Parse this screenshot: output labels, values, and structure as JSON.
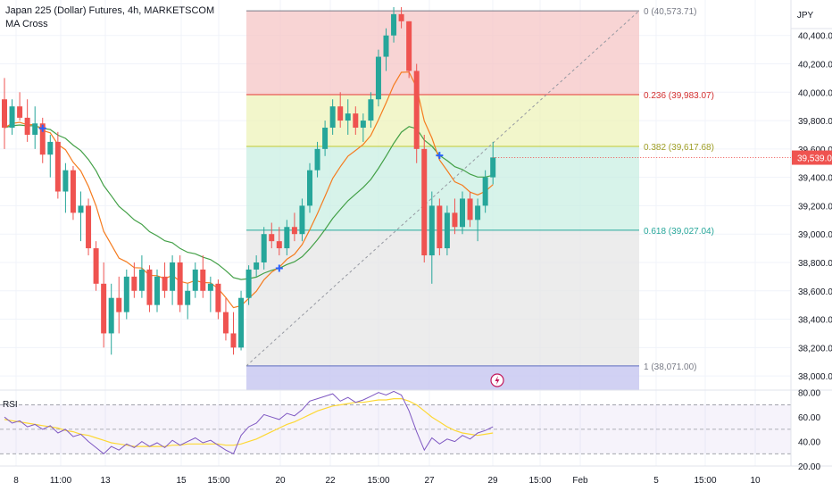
{
  "header": {
    "symbol_title": "Japan 225 (Dollar) Futures, 4h, MARKETSCOM",
    "indicator": "MA Cross",
    "currency": "JPY",
    "rsi_label": "RSI"
  },
  "colors": {
    "up": "#26a69a",
    "down": "#ef5350",
    "ma_fast": "#f57c1f",
    "ma_slow": "#43a047",
    "rsi_line": "#7e57c2",
    "rsi_ma": "#fdd835",
    "fib_0": "#f5c6c6",
    "fib_236": "#eef3b9",
    "fib_382": "#c9efe3",
    "fib_618": "#e6e6e6",
    "fib_1": "#c9c9f1",
    "cross_marker": "#2962ff",
    "price_tag": "#ef5350",
    "event_icon": "#c2185b"
  },
  "icons": {
    "event": "lightning-icon"
  },
  "price_axis": {
    "labels": [
      "40,400.00",
      "40,200.00",
      "40,000.00",
      "39,800.00",
      "39,600.00",
      "39,400.00",
      "39,200.00",
      "39,000.00",
      "38,800.00",
      "38,600.00",
      "38,400.00",
      "38,200.00",
      "38,000.00"
    ],
    "current_price": "39,539.01"
  },
  "rsi_axis": {
    "labels": [
      "80.00",
      "60.00",
      "40.00",
      "20.00"
    ]
  },
  "time_axis": {
    "labels": [
      "8",
      "11:00",
      "13",
      "15",
      "15:00",
      "20",
      "22",
      "15:00",
      "27",
      "29",
      "15:00",
      "Feb",
      "5",
      "15:00",
      "10"
    ]
  },
  "fib": {
    "levels": [
      {
        "ratio": 0,
        "price": 40573.71,
        "label": "0 (40,573.71)"
      },
      {
        "ratio": 0.236,
        "price": 39983.07,
        "label": "0.236 (39,983.07)"
      },
      {
        "ratio": 0.382,
        "price": 39617.68,
        "label": "0.382 (39,617.68)"
      },
      {
        "ratio": 0.618,
        "price": 39027.04,
        "label": "0.618 (39,027.04)"
      },
      {
        "ratio": 1,
        "price": 38071.0,
        "label": "1 (38,071.00)"
      }
    ]
  },
  "chart_data": {
    "type": "candlestick",
    "title": "Japan 225 (Dollar) Futures, 4h, MARKETSCOM",
    "y_unit": "JPY",
    "ylim": [
      37900,
      40650
    ],
    "candles": [
      [
        39950,
        40100,
        39600,
        39750
      ],
      [
        39750,
        39950,
        39700,
        39900
      ],
      [
        39900,
        40000,
        39800,
        39820
      ],
      [
        39820,
        39950,
        39650,
        39700
      ],
      [
        39700,
        39900,
        39600,
        39780
      ],
      [
        39780,
        39820,
        39500,
        39560
      ],
      [
        39560,
        39700,
        39400,
        39650
      ],
      [
        39650,
        39720,
        39250,
        39300
      ],
      [
        39300,
        39500,
        39150,
        39450
      ],
      [
        39450,
        39480,
        39100,
        39150
      ],
      [
        39150,
        39300,
        38950,
        39200
      ],
      [
        39200,
        39250,
        38850,
        38900
      ],
      [
        38900,
        38950,
        38600,
        38650
      ],
      [
        38650,
        38800,
        38200,
        38300
      ],
      [
        38300,
        38650,
        38150,
        38550
      ],
      [
        38550,
        38700,
        38300,
        38450
      ],
      [
        38450,
        38750,
        38400,
        38700
      ],
      [
        38700,
        38800,
        38550,
        38600
      ],
      [
        38600,
        38850,
        38550,
        38750
      ],
      [
        38750,
        38780,
        38450,
        38500
      ],
      [
        38500,
        38750,
        38450,
        38700
      ],
      [
        38700,
        38800,
        38550,
        38600
      ],
      [
        38600,
        38850,
        38500,
        38800
      ],
      [
        38800,
        38850,
        38450,
        38500
      ],
      [
        38500,
        38650,
        38400,
        38600
      ],
      [
        38600,
        38800,
        38550,
        38750
      ],
      [
        38750,
        38850,
        38550,
        38600
      ],
      [
        38600,
        38700,
        38450,
        38650
      ],
      [
        38650,
        38680,
        38400,
        38450
      ],
      [
        38450,
        38550,
        38250,
        38300
      ],
      [
        38300,
        38450,
        38150,
        38200
      ],
      [
        38200,
        38600,
        38180,
        38550
      ],
      [
        38550,
        38780,
        38500,
        38750
      ],
      [
        38750,
        38850,
        38700,
        38800
      ],
      [
        38800,
        39050,
        38750,
        39000
      ],
      [
        39000,
        39080,
        38900,
        38950
      ],
      [
        38950,
        39050,
        38850,
        38900
      ],
      [
        38900,
        39100,
        38850,
        39050
      ],
      [
        39050,
        39150,
        38950,
        39000
      ],
      [
        39000,
        39250,
        38950,
        39200
      ],
      [
        39200,
        39500,
        39150,
        39450
      ],
      [
        39450,
        39650,
        39400,
        39600
      ],
      [
        39600,
        39800,
        39550,
        39750
      ],
      [
        39750,
        39950,
        39700,
        39900
      ],
      [
        39900,
        40000,
        39750,
        39800
      ],
      [
        39800,
        39950,
        39700,
        39850
      ],
      [
        39850,
        39900,
        39700,
        39750
      ],
      [
        39750,
        39850,
        39650,
        39800
      ],
      [
        39800,
        40000,
        39750,
        39950
      ],
      [
        39950,
        40300,
        39900,
        40250
      ],
      [
        40250,
        40450,
        40150,
        40400
      ],
      [
        40400,
        40600,
        40350,
        40550
      ],
      [
        40550,
        40600,
        40450,
        40500
      ],
      [
        40500,
        40500,
        40100,
        40150
      ],
      [
        40150,
        40200,
        39500,
        39600
      ],
      [
        39600,
        39700,
        38800,
        38850
      ],
      [
        38850,
        39300,
        38650,
        39200
      ],
      [
        39200,
        39250,
        38850,
        38900
      ],
      [
        38900,
        39200,
        38850,
        39150
      ],
      [
        39150,
        39250,
        39000,
        39050
      ],
      [
        39050,
        39300,
        39000,
        39250
      ],
      [
        39250,
        39300,
        39050,
        39100
      ],
      [
        39100,
        39250,
        38950,
        39200
      ],
      [
        39200,
        39450,
        39150,
        39400
      ],
      [
        39400,
        39650,
        39350,
        39540
      ]
    ],
    "rsi": {
      "ylim": [
        20,
        82
      ],
      "bands": [
        70,
        50,
        30
      ],
      "values": [
        60,
        55,
        57,
        52,
        54,
        50,
        53,
        47,
        50,
        44,
        46,
        40,
        35,
        30,
        36,
        33,
        38,
        35,
        40,
        36,
        39,
        35,
        41,
        37,
        40,
        43,
        39,
        41,
        37,
        33,
        30,
        45,
        52,
        55,
        62,
        60,
        58,
        63,
        61,
        66,
        73,
        75,
        77,
        79,
        73,
        76,
        72,
        74,
        77,
        80,
        78,
        81,
        78,
        65,
        48,
        33,
        43,
        38,
        42,
        40,
        45,
        42,
        47,
        49,
        52
      ],
      "ma_values": [
        58,
        57,
        56,
        55,
        54,
        53,
        52,
        51,
        49,
        48,
        46,
        45,
        43,
        41,
        39,
        38,
        37,
        36,
        36,
        36,
        36,
        36,
        37,
        37,
        38,
        38,
        38,
        38,
        38,
        37,
        37,
        38,
        40,
        42,
        45,
        48,
        51,
        54,
        56,
        59,
        62,
        65,
        67,
        69,
        70,
        71,
        72,
        72,
        73,
        74,
        74,
        75,
        75,
        73,
        70,
        65,
        60,
        56,
        52,
        49,
        47,
        46,
        45,
        46,
        47
      ]
    }
  }
}
